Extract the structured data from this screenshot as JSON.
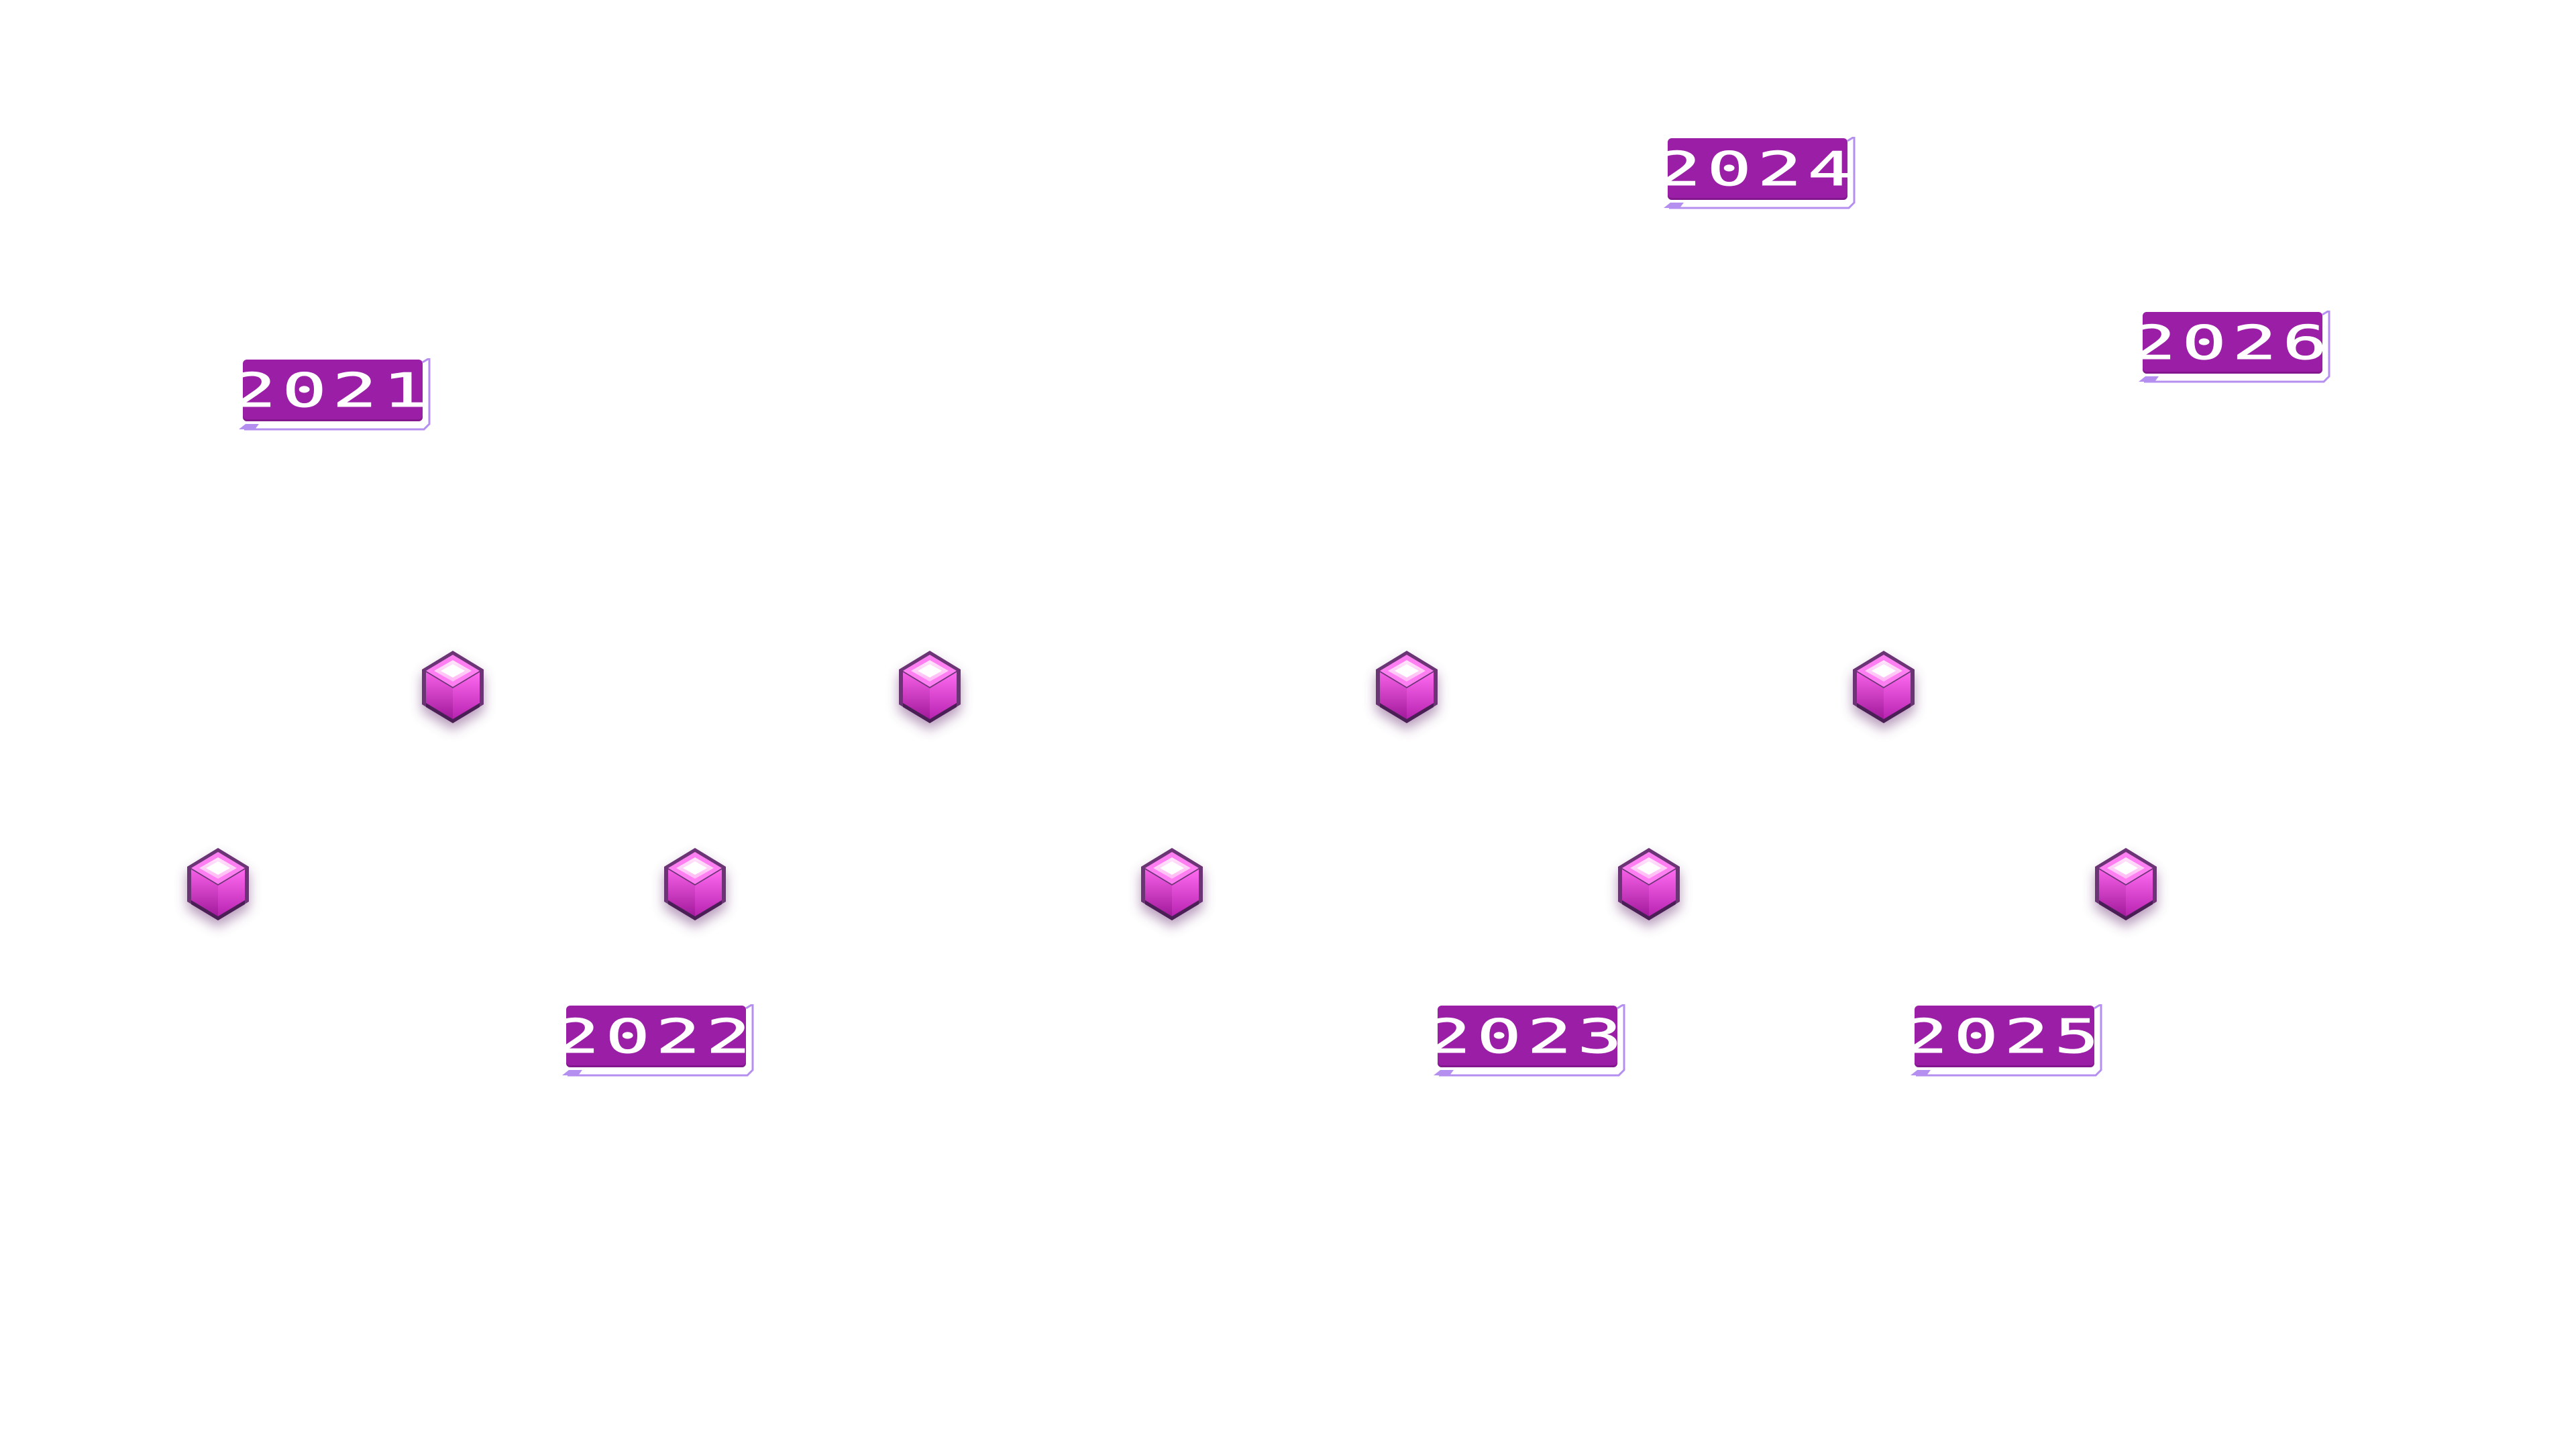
{
  "timeline": {
    "markers": [
      {
        "name": "gem-1",
        "icon": "cube-gem-icon"
      },
      {
        "name": "gem-2",
        "icon": "cube-gem-icon"
      },
      {
        "name": "gem-3",
        "icon": "cube-gem-icon"
      },
      {
        "name": "gem-4",
        "icon": "cube-gem-icon"
      },
      {
        "name": "gem-5",
        "icon": "cube-gem-icon"
      },
      {
        "name": "gem-6",
        "icon": "cube-gem-icon"
      },
      {
        "name": "gem-7",
        "icon": "cube-gem-icon"
      },
      {
        "name": "gem-8",
        "icon": "cube-gem-icon"
      },
      {
        "name": "gem-9",
        "icon": "cube-gem-icon"
      }
    ],
    "years": {
      "y2021": "2021",
      "y2022": "2022",
      "y2023": "2023",
      "y2024": "2024",
      "y2025": "2025",
      "y2026": "2026"
    }
  },
  "colors": {
    "badge_fill": "#9a1fa6",
    "badge_outline": "#b58ff0",
    "gem_light": "#ff9df3",
    "gem_mid": "#e23bd8",
    "gem_dark": "#5a2a66",
    "background": "#ffffff"
  }
}
